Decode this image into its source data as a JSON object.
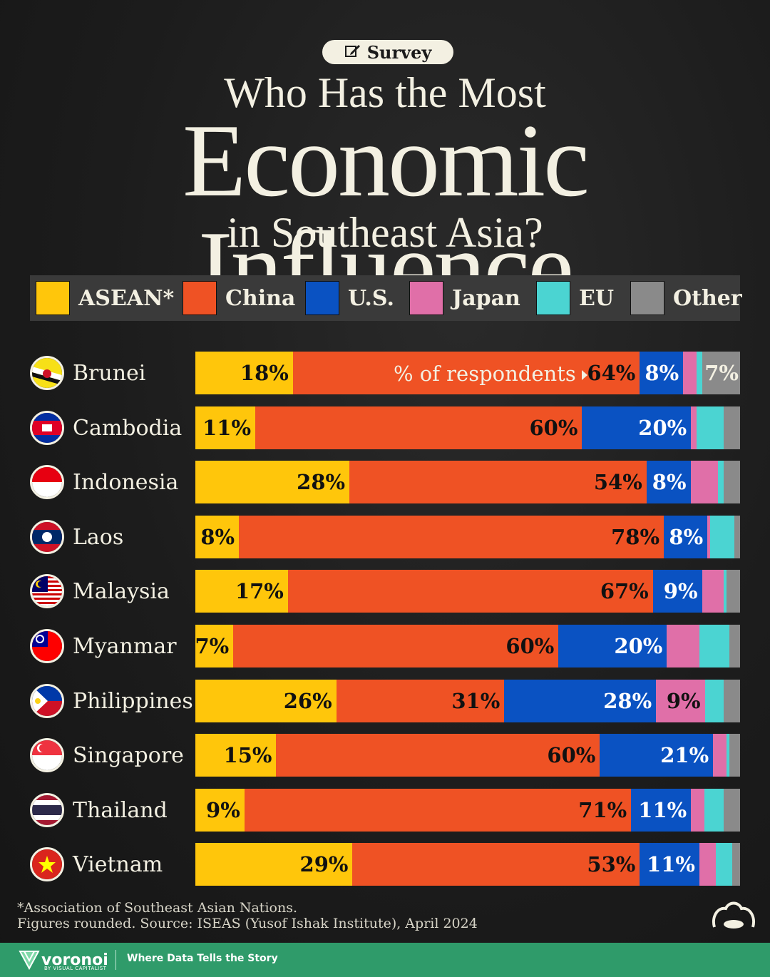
{
  "header": {
    "badge": "Survey",
    "title_line1": "Who Has the Most",
    "title_line2": "Economic Influence",
    "title_line3": "in Southeast Asia?"
  },
  "colors": {
    "ASEAN*": "#ffc60b",
    "China": "#ef5224",
    "U.S.": "#0a52c2",
    "Japan": "#e06fa8",
    "EU": "#4bd4d2",
    "Other": "#8a8a8a"
  },
  "chart_data": {
    "type": "bar",
    "orientation": "horizontal",
    "stacked": true,
    "unit": "%",
    "series_note": "% of respondents",
    "categories": [
      "Brunei",
      "Cambodia",
      "Indonesia",
      "Laos",
      "Malaysia",
      "Myanmar",
      "Philippines",
      "Singapore",
      "Thailand",
      "Vietnam"
    ],
    "series": [
      {
        "name": "ASEAN*",
        "values": [
          18,
          11,
          28,
          8,
          17,
          7,
          26,
          15,
          9,
          29
        ]
      },
      {
        "name": "China",
        "values": [
          64,
          60,
          54,
          78,
          67,
          60,
          31,
          60,
          71,
          53
        ]
      },
      {
        "name": "U.S.",
        "values": [
          8,
          20,
          8,
          8,
          9,
          20,
          28,
          21,
          11,
          11
        ]
      },
      {
        "name": "Japan",
        "values": [
          2.5,
          1,
          5,
          0.5,
          4,
          6,
          9,
          2.5,
          2.5,
          3
        ]
      },
      {
        "name": "EU",
        "values": [
          1,
          5,
          1,
          4.5,
          0.5,
          5.5,
          3.5,
          0.5,
          3.5,
          3
        ]
      },
      {
        "name": "Other",
        "values": [
          7,
          3,
          3,
          1,
          2.5,
          2,
          3,
          2,
          3,
          1.5
        ]
      }
    ],
    "labels": [
      {
        "ASEAN*": "18%",
        "China": "64%",
        "U.S.": "8%",
        "Other": "7%"
      },
      {
        "ASEAN*": "11%",
        "China": "60%",
        "U.S.": "20%"
      },
      {
        "ASEAN*": "28%",
        "China": "54%",
        "U.S.": "8%"
      },
      {
        "ASEAN*": "8%",
        "China": "78%",
        "U.S.": "8%"
      },
      {
        "ASEAN*": "17%",
        "China": "67%",
        "U.S.": "9%"
      },
      {
        "ASEAN*": "7%",
        "China": "60%",
        "U.S.": "20%"
      },
      {
        "ASEAN*": "26%",
        "China": "31%",
        "U.S.": "28%",
        "Japan": "9%"
      },
      {
        "ASEAN*": "15%",
        "China": "60%",
        "U.S.": "21%"
      },
      {
        "ASEAN*": "9%",
        "China": "71%",
        "U.S.": "11%"
      },
      {
        "ASEAN*": "29%",
        "China": "53%",
        "U.S.": "11%"
      }
    ],
    "legend": [
      "ASEAN*",
      "China",
      "U.S.",
      "Japan",
      "EU",
      "Other"
    ],
    "legend_position": "top"
  },
  "footnotes": {
    "note1": "*Association of Southeast Asian Nations.",
    "note2": "Figures rounded. Source: ISEAS (Yusof Ishak Institute), April 2024"
  },
  "footer": {
    "brand": "voronoi",
    "brand_sub": "BY VISUAL CAPITALIST",
    "tagline": "Where Data Tells the Story"
  }
}
